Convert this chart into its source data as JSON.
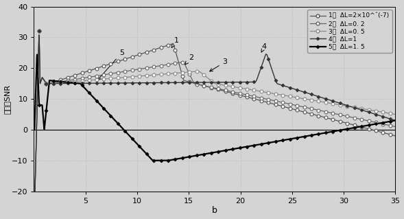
{
  "title": "b",
  "ylabel": "信噪比SNR",
  "xlim": [
    0,
    35
  ],
  "ylim": [
    -20,
    40
  ],
  "yticks": [
    -20,
    -10,
    0,
    10,
    20,
    30,
    40
  ],
  "xticks": [
    5,
    10,
    15,
    20,
    25,
    30,
    35
  ],
  "bg_color": "#d4d4d4",
  "legend_labels": [
    "1：  ΔL=2×10^ˆ(-7)",
    "2：  ΔL=0. 2",
    "3：  ΔL=0. 5",
    "4：  ΔL=1",
    "5：  ΔL=1. 5"
  ],
  "ann_labels": [
    "1",
    "2",
    "3",
    "4",
    "5"
  ],
  "ann_xy": [
    [
      13.8,
      29
    ],
    [
      15.2,
      23.5
    ],
    [
      18.5,
      22
    ],
    [
      22.3,
      27
    ],
    [
      8.5,
      25
    ]
  ],
  "ann_tip": [
    [
      13.3,
      26.5
    ],
    [
      14.6,
      21.0
    ],
    [
      16.8,
      18.5
    ],
    [
      22.0,
      25.0
    ],
    [
      6.0,
      15.5
    ]
  ]
}
